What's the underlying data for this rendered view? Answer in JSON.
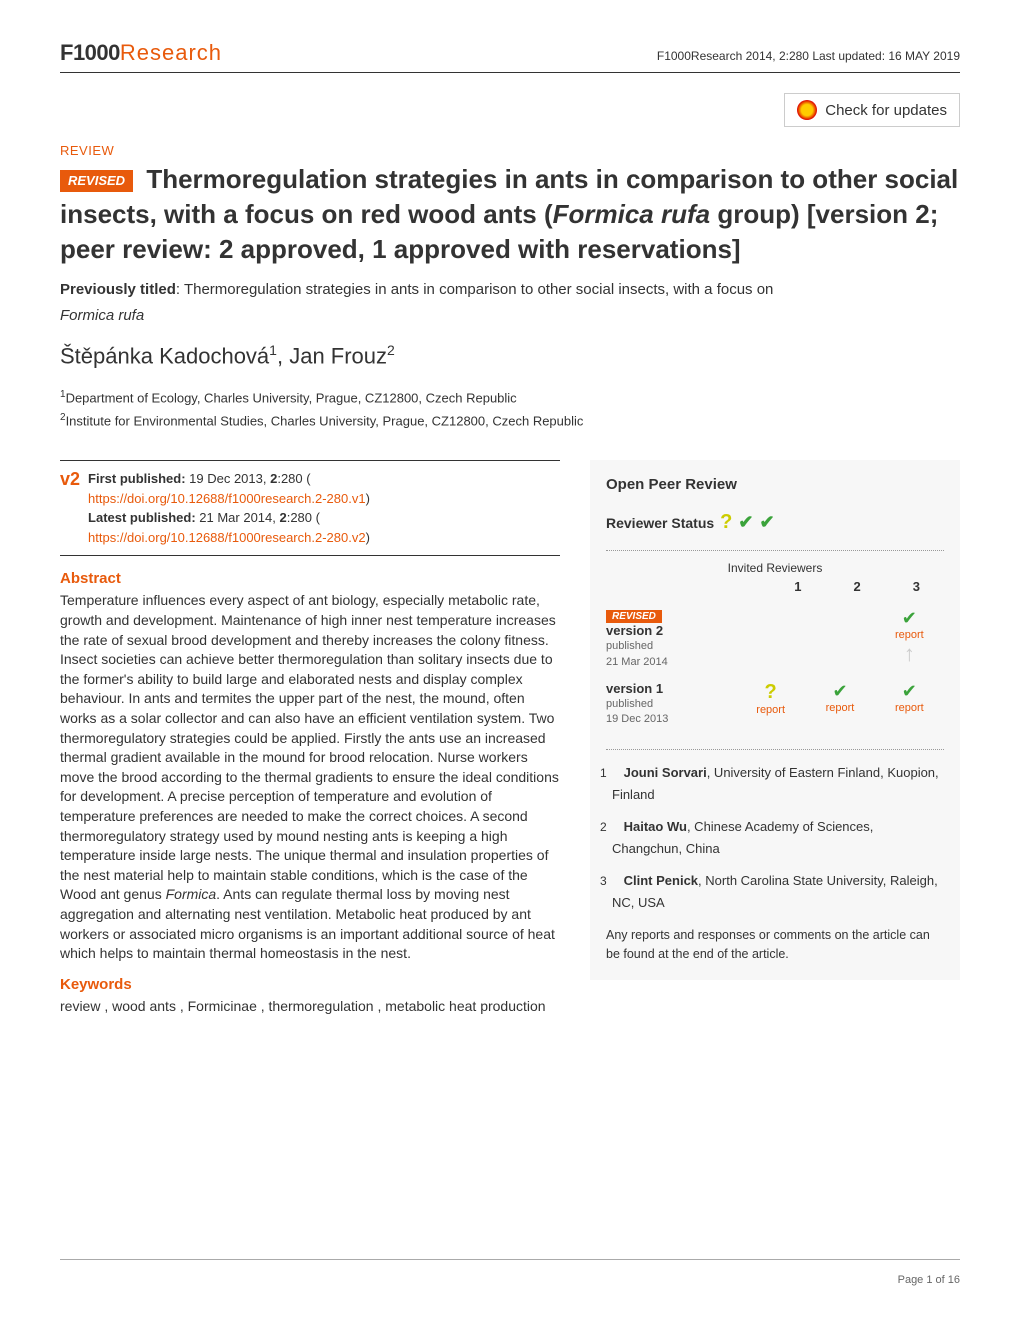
{
  "header": {
    "logo_part1": "F1000",
    "logo_part2": "Research",
    "meta": "F1000Research 2014, 2:280 Last updated: 16 MAY 2019",
    "check_updates_label": "Check for updates"
  },
  "article": {
    "type_label": "REVIEW",
    "revised_badge": "REVISED",
    "title_pre": "Thermoregulation strategies in ants in comparison to other social insects, with a focus on red wood ants (",
    "title_italic": "Formica rufa",
    "title_post": " group) [version 2; peer review: 2 approved, 1 approved with reservations]",
    "prev_titled_label": "Previously titled",
    "prev_title_text": ": Thermoregulation strategies in ants in comparison to other social insects, with a focus on ",
    "prev_title_italic": "Formica rufa",
    "authors_html": "Štěpánka Kadochová",
    "author1_sup": "1",
    "author_sep": ", ",
    "author2": "Jan Frouz",
    "author2_sup": "2",
    "affil1_sup": "1",
    "affil1": "Department of Ecology, Charles University, Prague, CZ12800, Czech Republic",
    "affil2_sup": "2",
    "affil2": "Institute for Environmental Studies, Charles University, Prague, CZ12800, Czech Republic"
  },
  "pubinfo": {
    "version_label": "v2",
    "first_pub_label": "First published:",
    "first_pub_text": " 19 Dec 2013, ",
    "first_pub_vol": "2",
    "first_pub_rest": ":280 (",
    "first_pub_doi": "https://doi.org/10.12688/f1000research.2-280.v1",
    "latest_pub_label": "Latest published:",
    "latest_pub_text": " 21 Mar 2014, ",
    "latest_pub_vol": "2",
    "latest_pub_rest": ":280 (",
    "latest_pub_doi": "https://doi.org/10.12688/f1000research.2-280.v2",
    "close_paren": ")"
  },
  "abstract": {
    "heading": "Abstract",
    "text": "Temperature influences every aspect of ant biology, especially metabolic rate, growth and development. Maintenance of high inner nest temperature increases the rate of sexual brood development and thereby increases the colony fitness. Insect societies can achieve better thermoregulation than solitary insects due to the former's ability to build large and elaborated nests and display complex behaviour. In ants and termites the upper part of the nest, the mound, often works as a solar collector and can also have an efficient ventilation system. Two thermoregulatory strategies could be applied. Firstly the ants use an increased thermal gradient available in the mound for brood relocation. Nurse workers move the brood according to the thermal gradients to ensure the ideal conditions for development. A precise perception of temperature and evolution of temperature preferences are needed to make the correct choices. A second thermoregulatory strategy used by mound nesting ants is keeping a high temperature inside large nests. The unique thermal and insulation properties of the nest material help to maintain stable conditions, which is the case of the Wood ant genus Formica. Ants can regulate thermal loss by moving nest aggregation and alternating nest ventilation. Metabolic heat produced by ant workers or associated micro organisms is an important additional source of heat which helps to maintain thermal homeostasis in the nest.",
    "keywords_heading": "Keywords",
    "keywords_text": "review , wood ants , Formicinae , thermoregulation , metabolic heat production"
  },
  "opr": {
    "title": "Open Peer Review",
    "status_label": "Reviewer Status",
    "invited_label": "Invited Reviewers",
    "cols": [
      "1",
      "2",
      "3"
    ],
    "versions": [
      {
        "badge": "REVISED",
        "label": "version 2",
        "meta1": "published",
        "meta2": "21 Mar 2014",
        "cells": [
          {
            "icon": "",
            "report": ""
          },
          {
            "icon": "",
            "report": ""
          },
          {
            "icon": "check",
            "report": "report"
          }
        ]
      },
      {
        "badge": "",
        "label": "version 1",
        "meta1": "published",
        "meta2": "19 Dec 2013",
        "cells": [
          {
            "icon": "q",
            "report": "report"
          },
          {
            "icon": "check",
            "report": "report"
          },
          {
            "icon": "check",
            "report": "report"
          }
        ]
      }
    ],
    "arrow_col": 3,
    "reviewers": [
      {
        "num": "1",
        "name": "Jouni Sorvari",
        "affil": ", University of Eastern Finland, Kuopion, Finland"
      },
      {
        "num": "2",
        "name": "Haitao Wu",
        "affil": ", Chinese Academy of Sciences, Changchun, China"
      },
      {
        "num": "3",
        "name": "Clint Penick",
        "affil": ", North Carolina State University, Raleigh, NC, USA"
      }
    ],
    "note": "Any reports and responses or comments on the article can be found at the end of the article."
  },
  "footer": {
    "page": "Page 1 of 16"
  },
  "colors": {
    "accent": "#e85a0c",
    "check": "#3ba33b",
    "question": "#cccc00"
  }
}
